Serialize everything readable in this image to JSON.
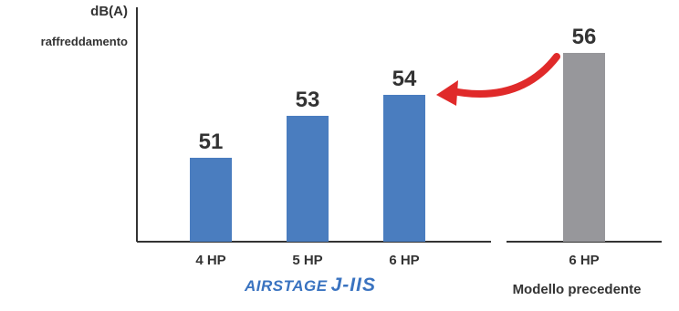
{
  "chart_data": [
    {
      "type": "bar",
      "ylabel": "dB(A)",
      "ylabel_sub": "raffreddamento",
      "categories": [
        "4 HP",
        "5 HP",
        "6 HP"
      ],
      "values": [
        51,
        53,
        54
      ],
      "ylim": [
        47,
        58
      ],
      "bar_color": "#4a7dbf",
      "grid": false,
      "brand": {
        "main": "AIRSTAGE",
        "series": "J-IIS"
      }
    },
    {
      "type": "bar",
      "categories": [
        "6 HP"
      ],
      "values": [
        56
      ],
      "ylim": [
        47,
        58
      ],
      "bar_color": "#97979b",
      "caption": "Modello precedente"
    }
  ],
  "colors": {
    "arrow": "#e02a2a",
    "axis": "#333333",
    "text": "#333333"
  }
}
